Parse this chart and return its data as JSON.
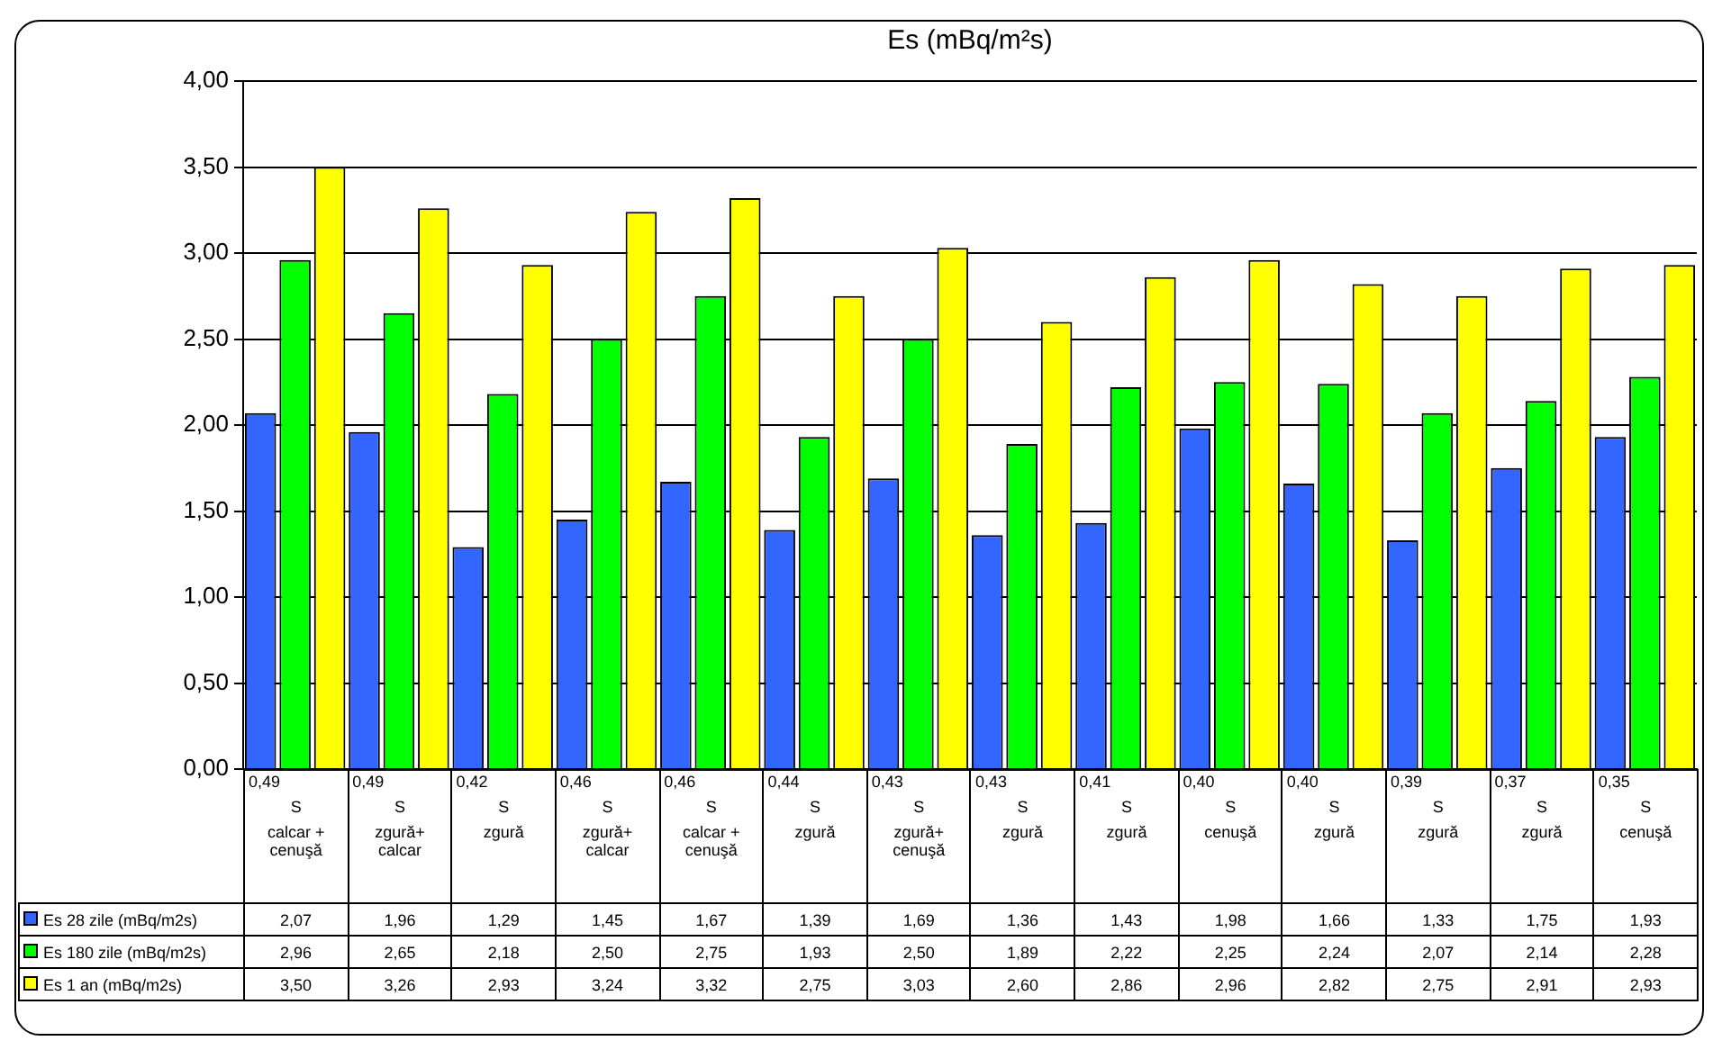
{
  "chart_data": {
    "type": "bar",
    "title": "Es (mBq/m²s)",
    "categories": [
      "0,49\nS\ncalcar + cenuşă",
      "0,49\nS\nzgură+ calcar",
      "0,42\nS\nzgură",
      "0,46\nS\nzgură+ calcar",
      "0,46\nS\ncalcar + cenuşă",
      "0,44\nS\nzgură",
      "0,43\nS\nzgură+ cenuşă",
      "0,43\nS\nzgură",
      "0,41\nS\nzgură",
      "0,40\nS\ncenuşă",
      "0,40\nS\nzgură",
      "0,39\nS\nzgură",
      "0,37\nS\nzgură",
      "0,35\nS\ncenuşă"
    ],
    "series": [
      {
        "name": "Es 28 zile (mBq/m2s)",
        "color": "#3366ff",
        "values": [
          2.07,
          1.96,
          1.29,
          1.45,
          1.67,
          1.39,
          1.69,
          1.36,
          1.43,
          1.98,
          1.66,
          1.33,
          1.75,
          1.93
        ],
        "value_labels": [
          "2,07",
          "1,96",
          "1,29",
          "1,45",
          "1,67",
          "1,39",
          "1,69",
          "1,36",
          "1,43",
          "1,98",
          "1,66",
          "1,33",
          "1,75",
          "1,93"
        ]
      },
      {
        "name": "Es 180 zile (mBq/m2s)",
        "color": "#00ff00",
        "values": [
          2.96,
          2.65,
          2.18,
          2.5,
          2.75,
          1.93,
          2.5,
          1.89,
          2.22,
          2.25,
          2.24,
          2.07,
          2.14,
          2.28
        ],
        "value_labels": [
          "2,96",
          "2,65",
          "2,18",
          "2,50",
          "2,75",
          "1,93",
          "2,50",
          "1,89",
          "2,22",
          "2,25",
          "2,24",
          "2,07",
          "2,14",
          "2,28"
        ]
      },
      {
        "name": "Es 1 an (mBq/m2s)",
        "color": "#ffff00",
        "values": [
          3.5,
          3.26,
          2.93,
          3.24,
          3.32,
          2.75,
          3.03,
          2.6,
          2.86,
          2.96,
          2.82,
          2.75,
          2.91,
          2.93
        ],
        "value_labels": [
          "3,50",
          "3,26",
          "2,93",
          "3,24",
          "3,32",
          "2,75",
          "3,03",
          "2,60",
          "2,86",
          "2,96",
          "2,82",
          "2,75",
          "2,91",
          "2,93"
        ]
      }
    ],
    "ylim": [
      0,
      4
    ],
    "yticks": [
      {
        "value": 0,
        "label": "0,00"
      },
      {
        "value": 0.5,
        "label": "0,50"
      },
      {
        "value": 1,
        "label": "1,00"
      },
      {
        "value": 1.5,
        "label": "1,50"
      },
      {
        "value": 2,
        "label": "2,00"
      },
      {
        "value": 2.5,
        "label": "2,50"
      },
      {
        "value": 3,
        "label": "3,00"
      },
      {
        "value": 3.5,
        "label": "3,50"
      },
      {
        "value": 4,
        "label": "4,00"
      }
    ],
    "grid": "y",
    "legend": "bottom"
  }
}
